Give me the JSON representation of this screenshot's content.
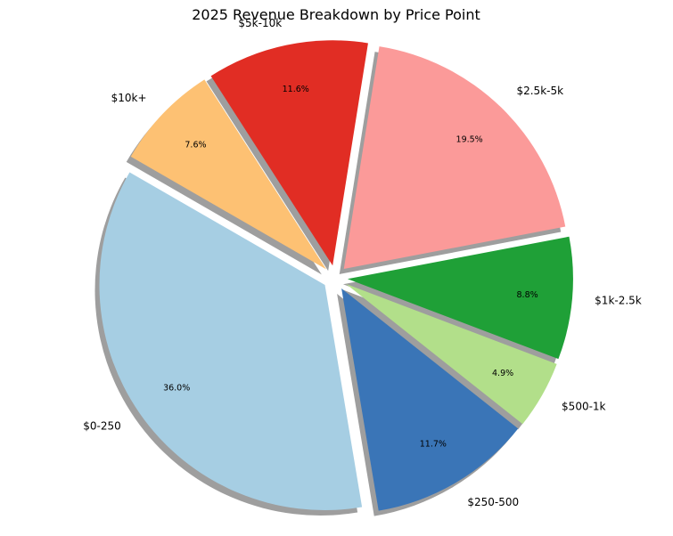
{
  "chart_data": {
    "type": "pie",
    "title": "2025 Revenue Breakdown by Price Point",
    "categories": [
      "$0-250",
      "$250-500",
      "$500-1k",
      "$1k-2.5k",
      "$2.5k-5k",
      "$5k-10k",
      "$10k+"
    ],
    "values": [
      36.0,
      11.7,
      4.9,
      8.8,
      19.5,
      11.6,
      7.6
    ],
    "value_labels": [
      "36.0%",
      "11.7%",
      "4.9%",
      "8.8%",
      "19.5%",
      "11.6%",
      "7.6%"
    ],
    "colors": [
      "#a6cee3",
      "#3a75b7",
      "#b2df8a",
      "#1fa037",
      "#fb9a99",
      "#e12d24",
      "#fdc173"
    ],
    "start_angle_deg": 150,
    "direction": "counterclockwise",
    "exploded": true,
    "shadow": true,
    "legend": "none"
  }
}
